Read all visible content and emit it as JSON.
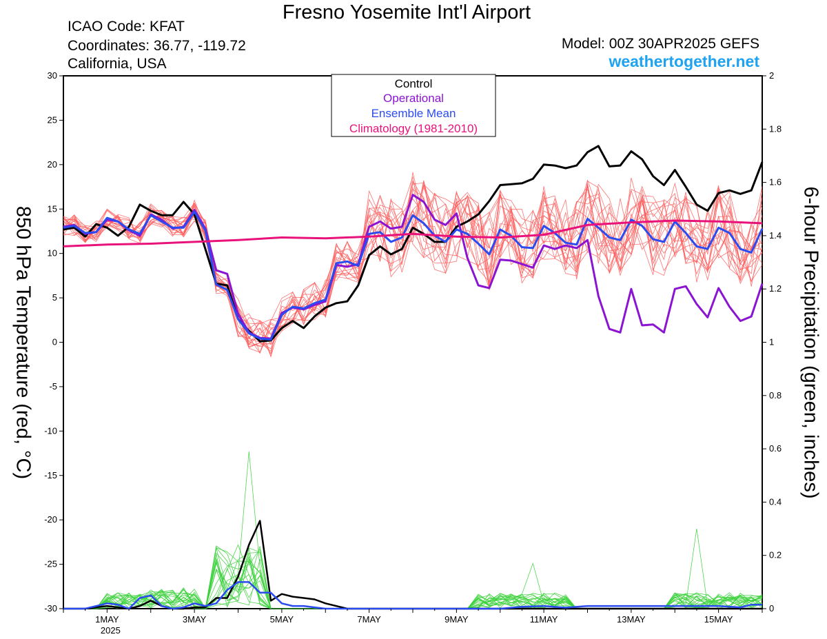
{
  "header": {
    "title": "Fresno Yosemite Int'l Airport",
    "icao": "ICAO Code: KFAT",
    "coordinates": "Coordinates: 36.77, -119.72",
    "region": "California, USA",
    "model": "Model: 00Z 30APR2025 GEFS",
    "site": "weathertogether.net"
  },
  "colors": {
    "control": "#000000",
    "operational": "#8a14d2",
    "ensemble_mean": "#2a4bf0",
    "climatology": "#e8127a",
    "members_temp": "#ff5a5a",
    "members_precip": "#3dd13d",
    "site": "#1ea3f0"
  },
  "chart_data": {
    "type": "line",
    "y_left": {
      "label": "850 hPa Temperature (red, °C)",
      "range": [
        -30,
        30
      ],
      "ticks": [
        "30",
        "25",
        "20",
        "15",
        "10",
        "5",
        "0",
        "-5",
        "-10",
        "-15",
        "-20",
        "-25",
        "-30"
      ]
    },
    "y_right": {
      "label": "6-hour Precipitation (green, inches)",
      "range": [
        0,
        2
      ],
      "ticks": [
        "2",
        "1.8",
        "1.6",
        "1.4",
        "1.2",
        "1",
        "0.8",
        "0.6",
        "0.4",
        "0.2",
        "0"
      ]
    },
    "x": {
      "unit": "days since 30APR2025 00Z",
      "range": [
        0,
        16
      ],
      "ticks": [
        {
          "day": 1,
          "label": "1MAY",
          "sub": "2025"
        },
        {
          "day": 3,
          "label": "3MAY"
        },
        {
          "day": 5,
          "label": "5MAY"
        },
        {
          "day": 7,
          "label": "7MAY"
        },
        {
          "day": 9,
          "label": "9MAY"
        },
        {
          "day": 11,
          "label": "11MAY"
        },
        {
          "day": 13,
          "label": "13MAY"
        },
        {
          "day": 15,
          "label": "15MAY"
        }
      ]
    },
    "legend": [
      "Control",
      "Operational",
      "Ensemble Mean",
      "Climatology (1981-2010)"
    ],
    "series": [
      {
        "name": "Control",
        "color": "#000000",
        "axis": "left",
        "x": [
          0,
          0.25,
          0.5,
          0.75,
          1,
          1.25,
          1.5,
          1.75,
          2,
          2.25,
          2.5,
          2.75,
          3,
          3.25,
          3.5,
          3.75,
          4,
          4.25,
          4.5,
          4.75,
          5,
          5.25,
          5.5,
          5.75,
          6,
          6.25,
          6.5,
          6.75,
          7,
          7.25,
          7.5,
          7.75,
          8,
          8.25,
          8.5,
          8.75,
          9,
          9.25,
          9.5,
          9.75,
          10,
          10.25,
          10.5,
          10.75,
          11,
          11.25,
          11.5,
          11.75,
          12,
          12.25,
          12.5,
          12.75,
          13,
          13.25,
          13.5,
          13.75,
          14,
          14.25,
          14.5,
          14.75,
          15,
          15.25,
          15.5,
          15.75,
          16
        ],
        "y": [
          12.7,
          12.9,
          11.9,
          13.3,
          12.9,
          12,
          13,
          15.5,
          14.8,
          14.3,
          14.3,
          15.8,
          14.4,
          10.5,
          6.6,
          6.4,
          2.6,
          1.3,
          0.1,
          0.2,
          1.6,
          2.4,
          1.6,
          2.9,
          3.9,
          4.4,
          4.6,
          6.4,
          9.8,
          10.8,
          9.9,
          10.5,
          12.9,
          12.2,
          11.3,
          11.3,
          13,
          13.6,
          14.4,
          15.9,
          17.7,
          17.8,
          17.9,
          18.4,
          20,
          19.9,
          19.6,
          19.9,
          21.4,
          22.1,
          19.8,
          19.9,
          21.5,
          20.6,
          18.7,
          17.7,
          19.4,
          17.5,
          15.5,
          14.8,
          16.8,
          17.1,
          16.7,
          17.1,
          20.3
        ]
      },
      {
        "name": "Operational",
        "color": "#8a14d2",
        "axis": "left",
        "x": [
          0,
          0.25,
          0.5,
          0.75,
          1,
          1.25,
          1.5,
          1.75,
          2,
          2.25,
          2.5,
          2.75,
          3,
          3.25,
          3.5,
          3.75,
          4,
          4.25,
          4.5,
          4.75,
          5,
          5.25,
          5.5,
          5.75,
          6,
          6.25,
          6.5,
          6.75,
          7,
          7.25,
          7.5,
          7.75,
          8,
          8.25,
          8.5,
          8.75,
          9,
          9.25,
          9.5,
          9.75,
          10,
          10.25,
          10.5,
          10.75,
          11,
          11.25,
          11.5,
          11.75,
          12,
          12.25,
          12.5,
          12.75,
          13,
          13.25,
          13.5,
          13.75,
          14,
          14.25,
          14.5,
          14.75,
          15,
          15.25,
          15.5,
          15.75,
          16
        ],
        "y": [
          13,
          13.2,
          12.2,
          12.4,
          13.8,
          13.6,
          12.6,
          12,
          14.4,
          13.8,
          12.8,
          13,
          14.9,
          12.8,
          8.1,
          7.7,
          3.2,
          1.1,
          0.5,
          0.4,
          3.3,
          3.9,
          3.7,
          4.2,
          4.6,
          8.7,
          8.5,
          8.8,
          13,
          13.6,
          12.8,
          13,
          16.6,
          15.8,
          13.8,
          13.2,
          14.5,
          9.5,
          6.4,
          6.1,
          9.3,
          9.2,
          8.8,
          8.4,
          10.9,
          10.5,
          10.9,
          10.6,
          11.5,
          5.2,
          1.5,
          1.1,
          6,
          1.9,
          2,
          1.1,
          6,
          6.3,
          4.3,
          2.8,
          6.1,
          4,
          2.4,
          2.9,
          6.6
        ]
      },
      {
        "name": "Ensemble Mean",
        "color": "#2a4bf0",
        "axis": "left",
        "x": [
          0,
          0.25,
          0.5,
          0.75,
          1,
          1.25,
          1.5,
          1.75,
          2,
          2.25,
          2.5,
          2.75,
          3,
          3.25,
          3.5,
          3.75,
          4,
          4.25,
          4.5,
          4.75,
          5,
          5.25,
          5.5,
          5.75,
          6,
          6.25,
          6.5,
          6.75,
          7,
          7.25,
          7.5,
          7.75,
          8,
          8.25,
          8.5,
          8.75,
          9,
          9.25,
          9.5,
          9.75,
          10,
          10.25,
          10.5,
          10.75,
          11,
          11.25,
          11.5,
          11.75,
          12,
          12.25,
          12.5,
          12.75,
          13,
          13.25,
          13.5,
          13.75,
          14,
          14.25,
          14.5,
          14.75,
          15,
          15.25,
          15.5,
          15.75,
          16
        ],
        "y": [
          12.9,
          13.1,
          12.3,
          12.4,
          14,
          13.6,
          12.7,
          12.2,
          14.3,
          13.6,
          12.9,
          12.9,
          14.7,
          12.6,
          6.5,
          5.9,
          2.6,
          1,
          0.4,
          0.3,
          3.1,
          4,
          3.8,
          4.4,
          4.8,
          8.9,
          9.1,
          8.6,
          12.2,
          12.4,
          11.3,
          11.8,
          14.3,
          13.4,
          12,
          11.3,
          12.7,
          12.2,
          11.1,
          9.9,
          12.7,
          12,
          10.7,
          10.6,
          13.1,
          12.3,
          11.2,
          11,
          13.9,
          12.9,
          11.8,
          11.5,
          13.8,
          13.1,
          11.6,
          11.3,
          13.6,
          12.3,
          10.8,
          10.5,
          12.9,
          12.3,
          10.5,
          10.1,
          12.8
        ]
      },
      {
        "name": "Climatology (1981-2010)",
        "color": "#e8127a",
        "axis": "left",
        "x": [
          0,
          1,
          2,
          3,
          4,
          5,
          6,
          7,
          8,
          9,
          10,
          11,
          12,
          13,
          14,
          15,
          16
        ],
        "y": [
          10.8,
          11,
          11.1,
          11.3,
          11.5,
          11.8,
          11.7,
          11.9,
          12.2,
          11.9,
          11.8,
          12.1,
          13.2,
          13.5,
          13.7,
          13.6,
          13.4
        ]
      },
      {
        "name": "Control",
        "color": "#000000",
        "axis": "right",
        "x": [
          0,
          0.5,
          1,
          1.25,
          1.5,
          1.75,
          2,
          2.25,
          2.5,
          2.75,
          3,
          3.25,
          3.5,
          3.75,
          4,
          4.25,
          4.5,
          4.75,
          5,
          5.25,
          5.5,
          5.75,
          6,
          6.5,
          7,
          8,
          9,
          10,
          11,
          12,
          13,
          14,
          15,
          16
        ],
        "y": [
          0,
          0,
          0.01,
          0.005,
          0,
          0.01,
          0.03,
          0.01,
          0,
          0,
          0.005,
          0.005,
          0.04,
          0.04,
          0.12,
          0.24,
          0.33,
          0.03,
          0.055,
          0.045,
          0.04,
          0.035,
          0.02,
          0,
          0,
          0,
          0,
          0,
          0,
          0,
          0,
          0,
          0,
          0
        ]
      },
      {
        "name": "Ensemble Mean",
        "color": "#2a4bf0",
        "axis": "right",
        "x": [
          0,
          0.5,
          1,
          1.25,
          1.5,
          1.75,
          2,
          2.25,
          2.5,
          2.75,
          3,
          3.25,
          3.5,
          3.75,
          4,
          4.25,
          4.5,
          4.75,
          5,
          5.25,
          5.5,
          5.75,
          6,
          7,
          8,
          9,
          10,
          10.5,
          11,
          11.5,
          12,
          13,
          14,
          15,
          15.5,
          15.75,
          16
        ],
        "y": [
          0,
          0,
          0.02,
          0.015,
          0,
          0.04,
          0.05,
          0.01,
          0,
          0.005,
          0.02,
          0.01,
          0.02,
          0.07,
          0.1,
          0.1,
          0.06,
          0.06,
          0.02,
          0.01,
          0.01,
          0.005,
          0,
          0,
          0,
          0,
          0,
          0.007,
          0.01,
          0.004,
          0.01,
          0.01,
          0.01,
          0.01,
          0.005,
          0.015,
          0.015
        ]
      }
    ]
  }
}
